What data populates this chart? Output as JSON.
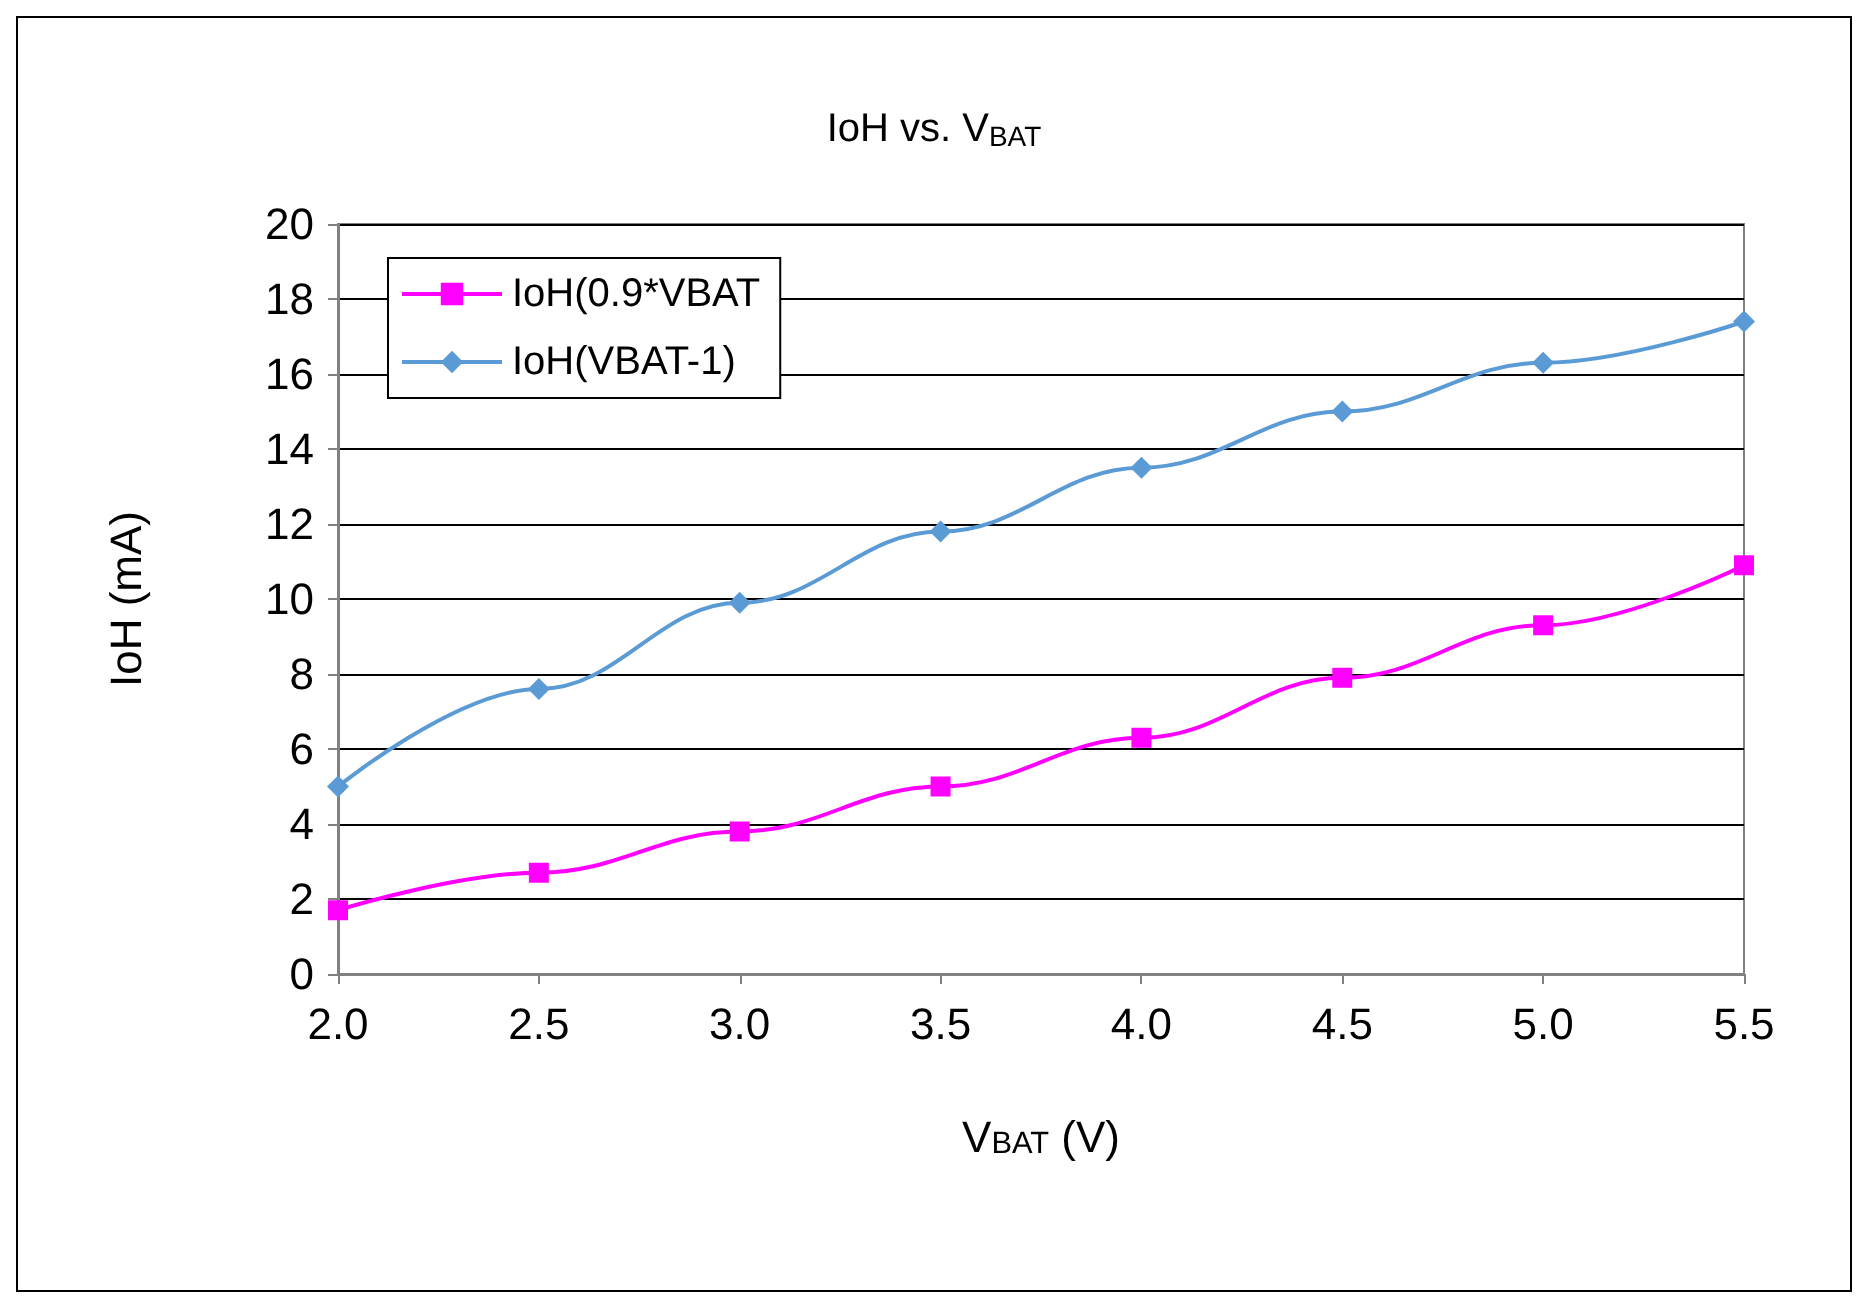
{
  "chart_data": {
    "type": "line",
    "title": "IoH vs. V$_{BAT}$",
    "xlabel": "V$_{BAT}$ (V)",
    "ylabel": "IoH (mA)",
    "x": [
      2.0,
      2.5,
      3.0,
      3.5,
      4.0,
      4.5,
      5.0,
      5.5
    ],
    "series": [
      {
        "name": "IoH(0.9*VBAT",
        "color": "#ff00ff",
        "marker": "square",
        "values": [
          1.7,
          2.7,
          3.8,
          5.0,
          6.3,
          7.9,
          9.3,
          10.9
        ]
      },
      {
        "name": "IoH(VBAT-1)",
        "color": "#5b9bd5",
        "marker": "diamond",
        "values": [
          5.0,
          7.6,
          9.9,
          11.8,
          13.5,
          15.0,
          16.3,
          17.4
        ]
      }
    ],
    "xlim": [
      2.0,
      5.5
    ],
    "xticks": [
      {
        "value": 2,
        "label": "2.0"
      },
      {
        "value": 2.5,
        "label": "2.5"
      },
      {
        "value": 3,
        "label": "3.0"
      },
      {
        "value": 3.5,
        "label": "3.5"
      },
      {
        "value": 4,
        "label": "4.0"
      },
      {
        "value": 4.5,
        "label": "4.5"
      },
      {
        "value": 5,
        "label": "5.0"
      },
      {
        "value": 5.5,
        "label": "5.5"
      }
    ],
    "ylim": [
      0,
      20
    ],
    "yticks": [
      0,
      2,
      4,
      6,
      8,
      10,
      12,
      14,
      16,
      18,
      20
    ],
    "grid": "y",
    "legend": "top left",
    "line_style": "solid"
  }
}
